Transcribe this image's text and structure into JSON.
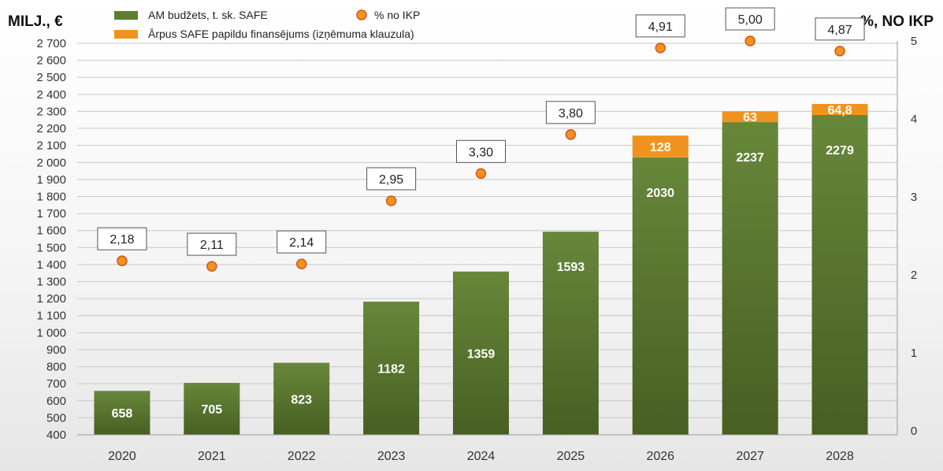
{
  "axis_units": {
    "left": "MILJ., €",
    "right": "%, NO IKP"
  },
  "legend": [
    {
      "label": "AM budžets, t. sk. SAFE",
      "kind": "bar",
      "color": "#5e7d32"
    },
    {
      "label": "Ārpus SAFE papildu finansējums (izņēmuma klauzula)",
      "kind": "bar",
      "color": "#f0931e"
    },
    {
      "label": "% no IKP",
      "kind": "marker",
      "color": "#f0931e"
    }
  ],
  "colors": {
    "bar_top": "#67873a",
    "bar_bottom": "#475f22",
    "extra": "#f0931e",
    "marker_fill": "#f0931e",
    "marker_stroke": "#d4561b",
    "grid": "#c8c8c8"
  },
  "chart_data": {
    "type": "bar",
    "stacked": true,
    "categories": [
      "2020",
      "2021",
      "2022",
      "2023",
      "2024",
      "2025",
      "2026",
      "2027",
      "2028"
    ],
    "series": [
      {
        "name": "AM budžets, t. sk. SAFE",
        "values": [
          658,
          705,
          823,
          1182,
          1359,
          1593,
          2030,
          2237,
          2279
        ],
        "labels": [
          "658",
          "705",
          "823",
          "1182",
          "1359",
          "1593",
          "2030",
          "2237",
          "2279"
        ]
      },
      {
        "name": "Ārpus SAFE papildu finansējums (izņēmuma klauzula)",
        "values": [
          null,
          null,
          null,
          null,
          null,
          null,
          128,
          63,
          64.8
        ],
        "labels": [
          "",
          "",
          "",
          "",
          "",
          "",
          "128",
          "63",
          "64,8"
        ]
      },
      {
        "name": "% no IKP",
        "axis": "right",
        "type": "scatter",
        "values": [
          2.18,
          2.11,
          2.14,
          2.95,
          3.3,
          3.8,
          4.91,
          5.0,
          4.87
        ],
        "labels": [
          "2,18",
          "2,11",
          "2,14",
          "2,95",
          "3,30",
          "3,80",
          "4,91",
          "5,00",
          "4,87"
        ]
      }
    ],
    "y_left": {
      "range": [
        400,
        2700
      ],
      "ticks": [
        400,
        500,
        600,
        700,
        800,
        900,
        1000,
        1100,
        1200,
        1300,
        1400,
        1500,
        1600,
        1700,
        1800,
        1900,
        2000,
        2100,
        2200,
        2300,
        2400,
        2500,
        2600,
        2700
      ],
      "tick_labels": [
        "400",
        "500",
        "600",
        "700",
        "800",
        "900",
        "1 000",
        "1 100",
        "1 200",
        "1 300",
        "1 400",
        "1 500",
        "1 600",
        "1 700",
        "1 800",
        "1 900",
        "2 000",
        "2 100",
        "2 200",
        "2 300",
        "2 400",
        "2 500",
        "2 600",
        "2 700"
      ]
    },
    "y_right": {
      "range": [
        0,
        5
      ],
      "ticks": [
        0,
        1,
        2,
        3,
        4,
        5
      ],
      "tick_labels": [
        "0",
        "1",
        "2",
        "3",
        "4",
        "5"
      ]
    },
    "grid": true,
    "legend_position": "top-left"
  }
}
